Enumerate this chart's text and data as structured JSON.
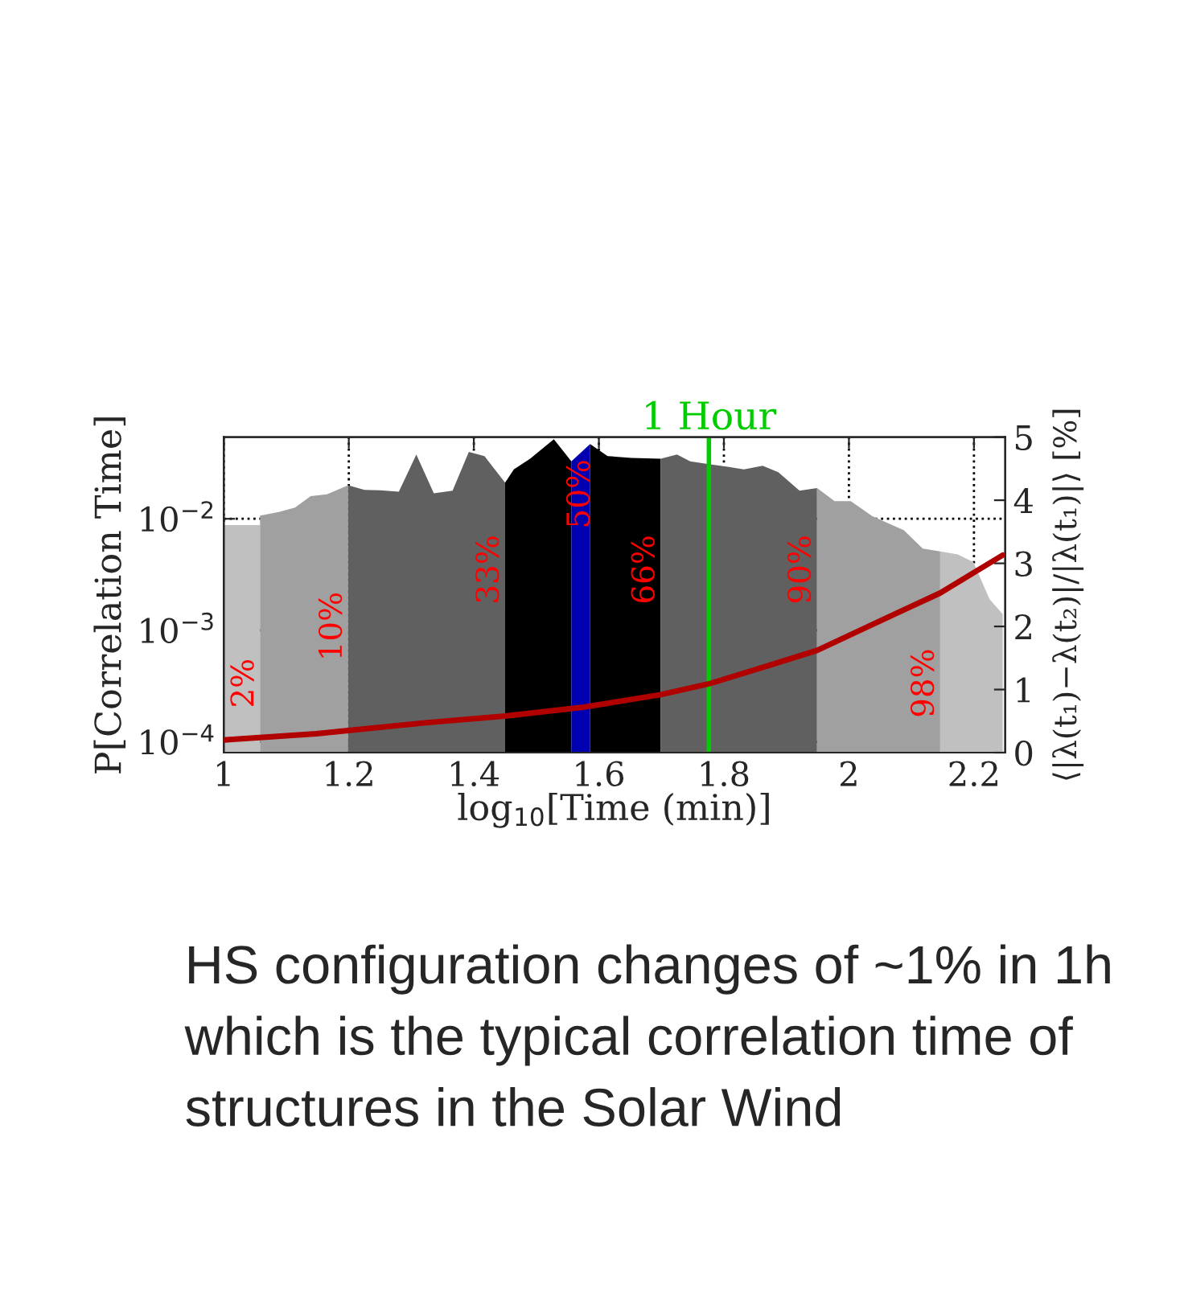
{
  "chart_data": {
    "type": "area",
    "xlabel": "log$_{10}$[Time (min)]",
    "ylabel": "P[Correlation Time]",
    "y2label": "⟨|λ(t₁)−λ(t₂)|/|λ(t₁)|⟩ [%]",
    "log": "y",
    "grid": true,
    "xlim": [
      1,
      2.25
    ],
    "xticks": [
      1,
      1.2,
      1.4,
      1.6,
      1.8,
      2,
      2.2
    ],
    "ylim": [
      8e-05,
      0.054
    ],
    "yticks": [
      {
        "value": 0.0001,
        "label": "10$^{−4}$"
      },
      {
        "value": 0.001,
        "label": "10$^{−3}$"
      },
      {
        "value": 0.01,
        "label": "10$^{−2}$"
      }
    ],
    "y2lim": [
      0,
      5
    ],
    "y2ticks": [
      0,
      1,
      2,
      3,
      4,
      5
    ],
    "series": [
      {
        "color": "#c0c0c0",
        "x": [
          1.0,
          1.058
        ],
        "values": [
          0.0088,
          0.0088
        ]
      },
      {
        "color": "#a0a0a0",
        "x": [
          1.058,
          1.088,
          1.114,
          1.139,
          1.165,
          1.199
        ],
        "values": [
          0.0107,
          0.0115,
          0.0126,
          0.016,
          0.0166,
          0.02
        ]
      },
      {
        "color": "#606060",
        "x": [
          1.199,
          1.225,
          1.25,
          1.28,
          1.308,
          1.336,
          1.366,
          1.392,
          1.417,
          1.45
        ],
        "values": [
          0.02,
          0.0182,
          0.018,
          0.0175,
          0.0377,
          0.0169,
          0.0179,
          0.0398,
          0.0365,
          0.0211
        ]
      },
      {
        "color": "#000000",
        "x": [
          1.45,
          1.464,
          1.49,
          1.528,
          1.556
        ],
        "values": [
          0.0211,
          0.0277,
          0.0346,
          0.0518,
          0.0327
        ]
      },
      {
        "color": "#0000b0",
        "x": [
          1.556,
          1.586
        ],
        "values": [
          0.0327,
          0.0469
        ]
      },
      {
        "color": "#000000",
        "x": [
          1.586,
          1.614,
          1.652,
          1.699
        ],
        "values": [
          0.0469,
          0.0365,
          0.0352,
          0.0346
        ]
      },
      {
        "color": "#606060",
        "x": [
          1.699,
          1.725,
          1.746,
          1.776,
          1.806,
          1.832,
          1.862,
          1.887,
          1.921,
          1.949
        ],
        "values": [
          0.0346,
          0.0377,
          0.0327,
          0.0309,
          0.0293,
          0.0277,
          0.0299,
          0.0262,
          0.0179,
          0.0189
        ]
      },
      {
        "color": "#a0a0a0",
        "x": [
          1.949,
          1.977,
          2.003,
          2.037,
          2.088,
          2.118,
          2.146
        ],
        "values": [
          0.0189,
          0.0144,
          0.0144,
          0.0106,
          0.0079,
          0.0054,
          0.0051
        ]
      },
      {
        "color": "#c0c0c0",
        "x": [
          2.146,
          2.174,
          2.199,
          2.225,
          2.246
        ],
        "values": [
          0.0051,
          0.0048,
          0.0041,
          0.0019,
          0.0014
        ]
      },
      {
        "type": "line",
        "axis": "y2",
        "color": "#b00000",
        "x": [
          1.0,
          1.148,
          1.319,
          1.45,
          1.575,
          1.699,
          1.776,
          1.875,
          1.949,
          2.046,
          2.146,
          2.246
        ],
        "values": [
          0.2,
          0.3,
          0.47,
          0.58,
          0.72,
          0.92,
          1.09,
          1.39,
          1.62,
          2.07,
          2.53,
          3.13
        ]
      }
    ],
    "ref_lines": [
      {
        "axis": "x",
        "value": 1.776,
        "label": "1 Hour",
        "color": "#00cc00"
      }
    ],
    "annotations": [
      "2%",
      "10%",
      "33%",
      "50%",
      "66%",
      "90%",
      "98%",
      "HS configuration changes of ~1% in 1h which is the typical correlation time of structures in the Solar Wind"
    ]
  }
}
